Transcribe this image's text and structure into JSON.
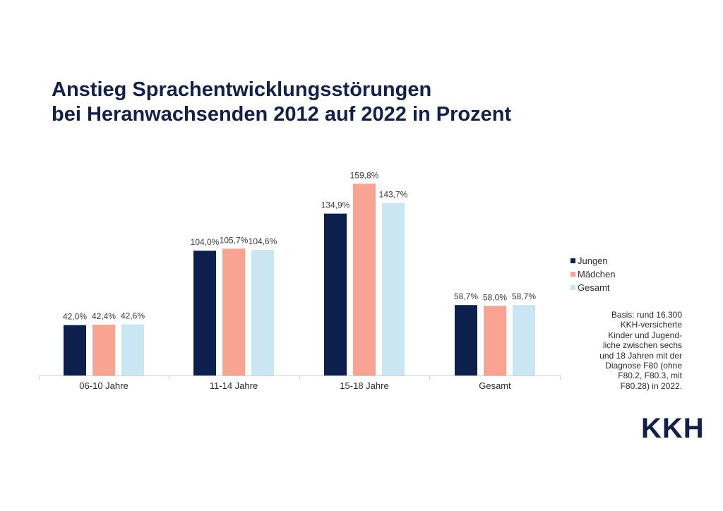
{
  "title": {
    "line1": "Anstieg Sprachentwicklungsstörungen",
    "line2": "bei Heranwachsenden 2012 auf 2022 in Prozent"
  },
  "chart_data": {
    "type": "bar",
    "categories": [
      "06-10 Jahre",
      "11-14 Jahre",
      "15-18 Jahre",
      "Gesamt"
    ],
    "series": [
      {
        "name": "Jungen",
        "color": "#0d1f4c",
        "values": [
          42.0,
          104.0,
          134.9,
          58.7
        ],
        "labels": [
          "42,0%",
          "104,0%",
          "134,9%",
          "58,7%"
        ]
      },
      {
        "name": "Mädchen",
        "color": "#f9a392",
        "values": [
          42.4,
          105.7,
          159.8,
          58.0
        ],
        "labels": [
          "42,4%",
          "105,7%",
          "159,8%",
          "58,0%"
        ]
      },
      {
        "name": "Gesamt",
        "color": "#c9e6f2",
        "values": [
          42.6,
          104.6,
          143.7,
          58.7
        ],
        "labels": [
          "42,6%",
          "104,6%",
          "143,7%",
          "58,7%"
        ]
      }
    ],
    "ylim": [
      0,
      160
    ],
    "grid": false,
    "legend_position": "right"
  },
  "note": "Basis: rund 16.300 KKH-versicherte Kinder und Jugend-liche zwischen sechs und 18 Jahren mit der Diagnose F80 (ohne F80.2, F80.3, mit F80.28) in 2022.",
  "note_lines": [
    "Basis: rund 16.300",
    "KKH-versicherte",
    "Kinder und Jugend-",
    "liche zwischen sechs",
    "und 18 Jahren mit der",
    "Diagnose F80 (ohne",
    "F80.2, F80.3, mit",
    "F80.28) in 2022."
  ],
  "logo": {
    "text": "KKH"
  }
}
